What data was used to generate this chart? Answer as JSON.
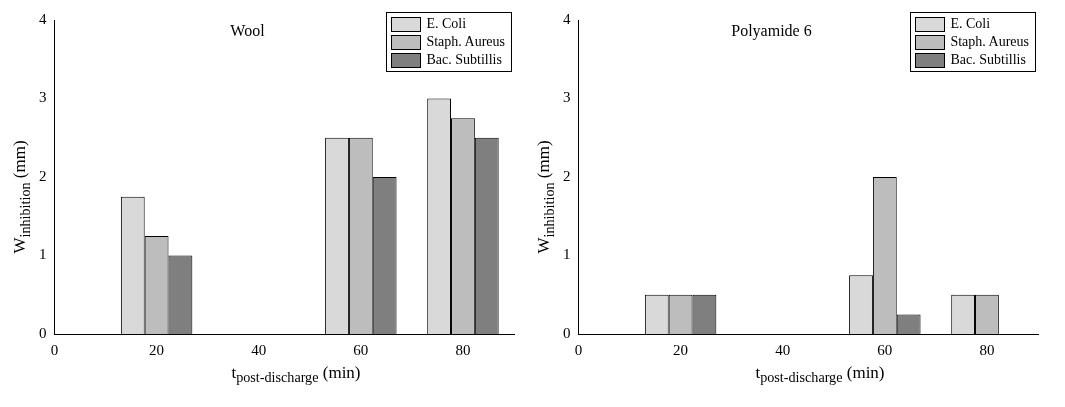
{
  "chart_data": [
    {
      "type": "bar",
      "title": "Wool",
      "xlabel": "t$_{post-discharge}$ (min)",
      "ylabel": "W$_{inhibition}$ (mm)",
      "x": [
        20,
        40,
        60,
        80
      ],
      "xlim": [
        0,
        90
      ],
      "xticks": [
        0,
        20,
        40,
        60,
        80
      ],
      "ylim": [
        0,
        4
      ],
      "yticks": [
        0,
        1,
        2,
        3,
        4
      ],
      "legend": "top right",
      "series": [
        {
          "name": "E. Coli",
          "color": "#d9d9d9",
          "values": [
            1.75,
            null,
            2.5,
            3
          ]
        },
        {
          "name": "Staph. Aureus",
          "color": "#bdbdbd",
          "values": [
            1.25,
            null,
            2.5,
            2.75
          ]
        },
        {
          "name": "Bac. Subtillis",
          "color": "#7f7f7f",
          "values": [
            1,
            null,
            2,
            2.5
          ]
        }
      ]
    },
    {
      "type": "bar",
      "title": "Polyamide 6",
      "xlabel": "t$_{post-discharge}$ (min)",
      "ylabel": "W$_{inhibition}$ (mm)",
      "x": [
        20,
        40,
        60,
        80
      ],
      "xlim": [
        0,
        90
      ],
      "xticks": [
        0,
        20,
        40,
        60,
        80
      ],
      "ylim": [
        0,
        4
      ],
      "yticks": [
        0,
        1,
        2,
        3,
        4
      ],
      "legend": "top right",
      "series": [
        {
          "name": "E. Coli",
          "color": "#d9d9d9",
          "values": [
            0.5,
            null,
            0.75,
            0.5
          ]
        },
        {
          "name": "Staph. Aureus",
          "color": "#bdbdbd",
          "values": [
            0.5,
            null,
            2,
            0.5
          ]
        },
        {
          "name": "Bac. Subtillis",
          "color": "#7f7f7f",
          "values": [
            0.5,
            null,
            0.25,
            null
          ]
        }
      ]
    }
  ]
}
